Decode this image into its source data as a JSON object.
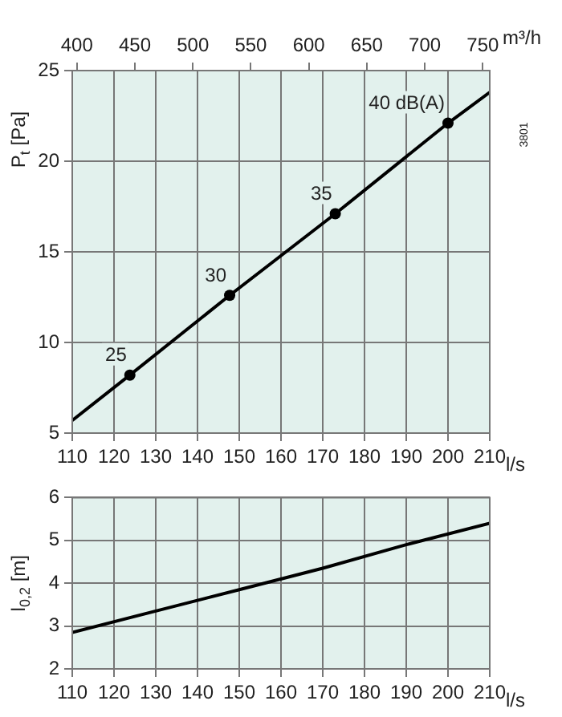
{
  "chart_data": [
    {
      "type": "line",
      "ylabel": "P$_{t}$ [Pa]",
      "xlabel": "l/s",
      "x2label": "m³/h",
      "xlim": [
        110,
        210
      ],
      "xticks": [
        110,
        120,
        130,
        140,
        150,
        160,
        170,
        180,
        190,
        200,
        210
      ],
      "x2lim": [
        396,
        756
      ],
      "x2ticks": [
        400,
        450,
        500,
        550,
        600,
        650,
        700,
        750
      ],
      "ylim": [
        5,
        25
      ],
      "yticks": [
        5,
        10,
        15,
        20,
        25
      ],
      "grid": true,
      "legend": false,
      "series": [
        {
          "color": "#000000",
          "marker": "none",
          "x": [
            110,
            123.8,
            147.7,
            173,
            200,
            210
          ],
          "values": [
            5.7,
            8.2,
            12.6,
            17.1,
            22.1,
            23.8
          ]
        },
        {
          "type": "scatter",
          "color": "#000000",
          "marker": "circle",
          "x": [
            123.8,
            147.7,
            173,
            200
          ],
          "values": [
            8.2,
            12.6,
            17.1,
            22.1
          ]
        }
      ],
      "annotations": [
        {
          "text": "25",
          "x": 123.8,
          "y": 8.2
        },
        {
          "text": "30",
          "x": 147.7,
          "y": 12.6
        },
        {
          "text": "35",
          "x": 173,
          "y": 17.1
        },
        {
          "text": "40 dB(A)",
          "x": 200,
          "y": 22.1
        },
        "3801"
      ]
    },
    {
      "type": "line",
      "ylabel": "l$_{0,2}$ [m]",
      "xlabel": "l/s",
      "xlim": [
        110,
        210
      ],
      "xticks": [
        110,
        120,
        130,
        140,
        150,
        160,
        170,
        180,
        190,
        200,
        210
      ],
      "ylim": [
        2,
        6
      ],
      "yticks": [
        2,
        3,
        4,
        5,
        6
      ],
      "grid": true,
      "legend": false,
      "series": [
        {
          "color": "#000000",
          "marker": "none",
          "x": [
            110,
            130,
            150,
            170,
            190,
            210
          ],
          "values": [
            2.85,
            3.35,
            3.85,
            4.35,
            4.9,
            5.4
          ]
        }
      ]
    }
  ]
}
